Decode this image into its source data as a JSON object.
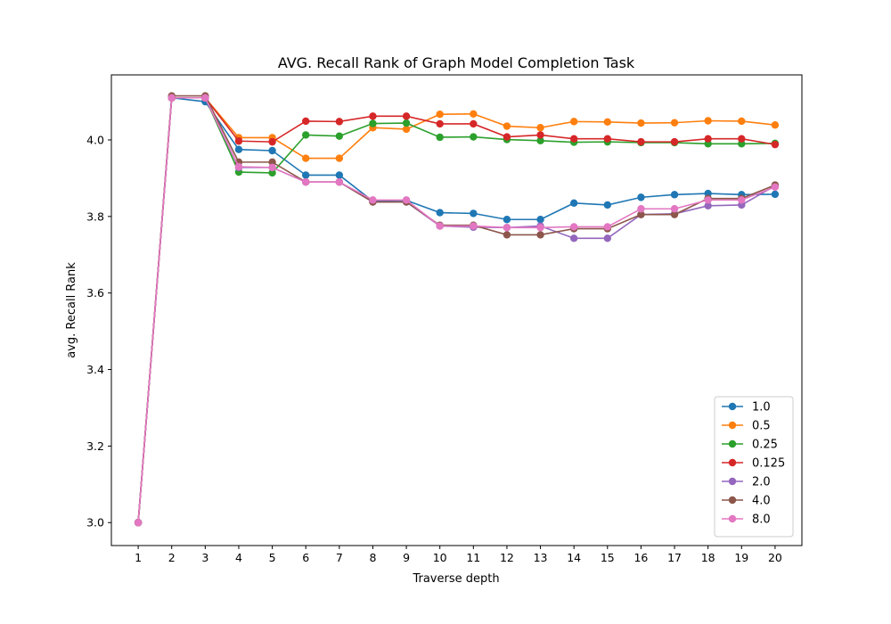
{
  "chart_data": {
    "type": "line",
    "title": "AVG. Recall Rank of Graph Model Completion Task",
    "xlabel": "Traverse depth",
    "ylabel": "avg. Recall Rank",
    "x": [
      1,
      2,
      3,
      4,
      5,
      6,
      7,
      8,
      9,
      10,
      11,
      12,
      13,
      14,
      15,
      16,
      17,
      18,
      19,
      20
    ],
    "xlim": [
      0.2,
      20.8
    ],
    "ylim": [
      2.94,
      4.17
    ],
    "yticks": [
      3.0,
      3.2,
      3.4,
      3.6,
      3.8,
      4.0
    ],
    "ytick_labels": [
      "3.0",
      "3.2",
      "3.4",
      "3.6",
      "3.8",
      "4.0"
    ],
    "grid": false,
    "legend_position": "lower right",
    "series": [
      {
        "name": "1.0",
        "color": "#1f77b4",
        "values": [
          3.0,
          4.11,
          4.1,
          3.975,
          3.972,
          3.908,
          3.908,
          3.84,
          3.842,
          3.81,
          3.808,
          3.792,
          3.792,
          3.835,
          3.83,
          3.85,
          3.857,
          3.86,
          3.857,
          3.858
        ]
      },
      {
        "name": "0.5",
        "color": "#ff7f0e",
        "values": [
          3.0,
          4.11,
          4.11,
          4.006,
          4.006,
          3.952,
          3.952,
          4.032,
          4.028,
          4.067,
          4.068,
          4.036,
          4.032,
          4.048,
          4.047,
          4.044,
          4.045,
          4.05,
          4.049,
          4.039
        ]
      },
      {
        "name": "0.25",
        "color": "#2ca02c",
        "values": [
          3.0,
          4.11,
          4.11,
          3.916,
          3.914,
          4.013,
          4.01,
          4.043,
          4.044,
          4.007,
          4.008,
          4.001,
          3.998,
          3.994,
          3.995,
          3.993,
          3.993,
          3.99,
          3.99,
          3.991
        ]
      },
      {
        "name": "0.125",
        "color": "#d62728",
        "values": [
          3.0,
          4.11,
          4.11,
          3.997,
          3.995,
          4.049,
          4.048,
          4.062,
          4.062,
          4.042,
          4.042,
          4.008,
          4.013,
          4.003,
          4.003,
          3.995,
          3.995,
          4.003,
          4.003,
          3.988
        ]
      },
      {
        "name": "2.0",
        "color": "#9467bd",
        "values": [
          3.0,
          4.11,
          4.11,
          3.928,
          3.928,
          3.89,
          3.89,
          3.838,
          3.838,
          3.775,
          3.772,
          3.771,
          3.775,
          3.743,
          3.743,
          3.805,
          3.807,
          3.828,
          3.83,
          3.88
        ]
      },
      {
        "name": "4.0",
        "color": "#8c564b",
        "values": [
          3.0,
          4.115,
          4.115,
          3.942,
          3.942,
          3.89,
          3.89,
          3.838,
          3.838,
          3.777,
          3.777,
          3.752,
          3.752,
          3.768,
          3.768,
          3.805,
          3.805,
          3.847,
          3.847,
          3.882
        ]
      },
      {
        "name": "8.0",
        "color": "#e377c2",
        "values": [
          3.0,
          4.11,
          4.11,
          3.93,
          3.928,
          3.89,
          3.89,
          3.843,
          3.843,
          3.775,
          3.775,
          3.771,
          3.771,
          3.773,
          3.773,
          3.82,
          3.82,
          3.843,
          3.843,
          3.877
        ]
      }
    ]
  }
}
